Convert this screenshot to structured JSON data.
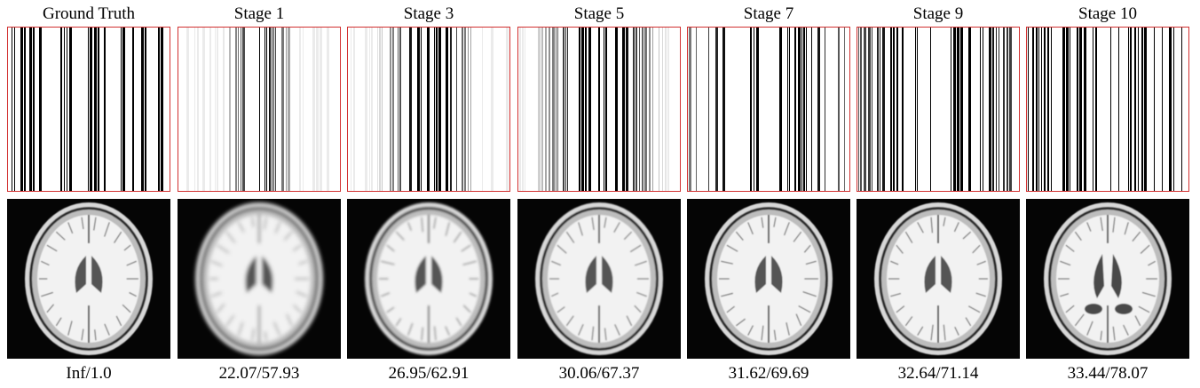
{
  "panels": [
    {
      "title": "Ground Truth",
      "metric": "Inf/1.0",
      "mask_sharpness": 1.0
    },
    {
      "title": "Stage 1",
      "metric": "22.07/57.93",
      "mask_sharpness": 0.15
    },
    {
      "title": "Stage 3",
      "metric": "26.95/62.91",
      "mask_sharpness": 0.35
    },
    {
      "title": "Stage 5",
      "metric": "30.06/67.37",
      "mask_sharpness": 0.5
    },
    {
      "title": "Stage 7",
      "metric": "31.62/69.69",
      "mask_sharpness": 0.85
    },
    {
      "title": "Stage 9",
      "metric": "32.64/71.14",
      "mask_sharpness": 0.95
    },
    {
      "title": "Stage 10",
      "metric": "33.44/78.07",
      "mask_sharpness": 1.0
    }
  ],
  "colors": {
    "mask_border": "#d23030",
    "background": "#ffffff",
    "mri_background": "#050505"
  }
}
